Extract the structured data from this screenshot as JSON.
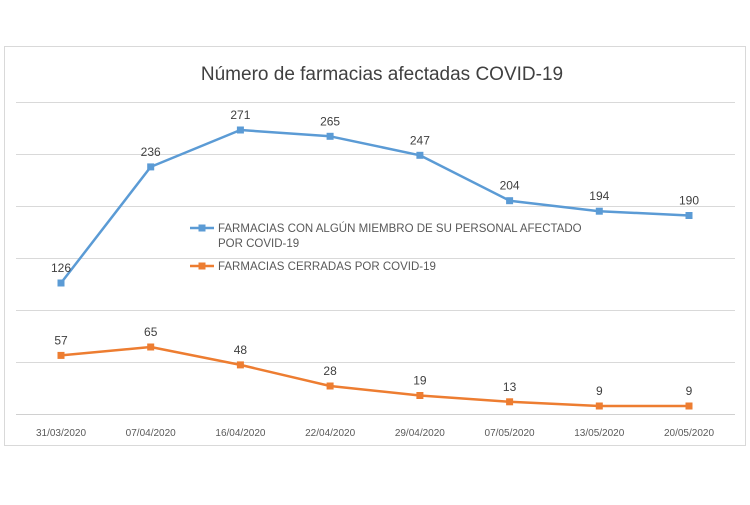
{
  "chart_data": {
    "type": "line",
    "title": "Número de farmacias afectadas COVID-19",
    "categories": [
      "31/03/2020",
      "07/04/2020",
      "16/04/2020",
      "22/04/2020",
      "29/04/2020",
      "07/05/2020",
      "13/05/2020",
      "20/05/2020"
    ],
    "series": [
      {
        "name": "FARMACIAS CON ALGÚN MIEMBRO DE SU PERSONAL AFECTADO POR COVID-19",
        "name_lines": [
          "FARMACIAS CON ALGÚN MIEMBRO DE SU PERSONAL AFECTADO",
          "POR COVID-19"
        ],
        "color": "#5b9bd5",
        "values": [
          126,
          236,
          271,
          265,
          247,
          204,
          194,
          190
        ]
      },
      {
        "name": "FARMACIAS CERRADAS POR COVID-19",
        "name_lines": [
          "FARMACIAS CERRADAS POR COVID-19"
        ],
        "color": "#ed7d31",
        "values": [
          57,
          65,
          48,
          28,
          19,
          13,
          9,
          9
        ]
      }
    ],
    "xlabel": "",
    "ylabel": "",
    "grid": true,
    "legend_position": "center-right"
  }
}
